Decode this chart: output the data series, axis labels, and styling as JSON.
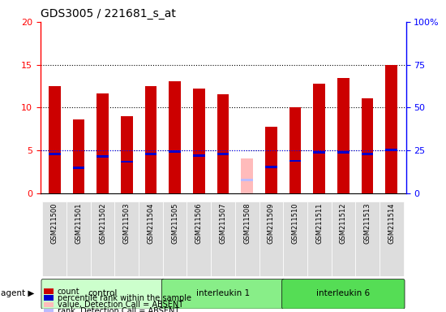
{
  "title": "GDS3005 / 221681_s_at",
  "samples": [
    "GSM211500",
    "GSM211501",
    "GSM211502",
    "GSM211503",
    "GSM211504",
    "GSM211505",
    "GSM211506",
    "GSM211507",
    "GSM211508",
    "GSM211509",
    "GSM211510",
    "GSM211511",
    "GSM211512",
    "GSM211513",
    "GSM211514"
  ],
  "count_values": [
    12.5,
    8.6,
    11.7,
    9.0,
    12.5,
    13.1,
    12.2,
    11.6,
    null,
    7.8,
    10.0,
    12.8,
    13.5,
    11.1,
    15.0
  ],
  "rank_values": [
    4.6,
    3.0,
    4.3,
    3.7,
    4.6,
    4.9,
    4.4,
    4.6,
    null,
    3.1,
    3.8,
    4.8,
    4.8,
    4.6,
    5.1
  ],
  "absent_count": [
    null,
    null,
    null,
    null,
    null,
    null,
    null,
    null,
    4.1,
    null,
    null,
    null,
    null,
    null,
    null
  ],
  "absent_rank": [
    null,
    null,
    null,
    null,
    null,
    null,
    null,
    null,
    1.6,
    null,
    null,
    null,
    null,
    null,
    null
  ],
  "groups": [
    {
      "label": "control",
      "start": 0,
      "end": 4,
      "color": "#aaffaa"
    },
    {
      "label": "interleukin 1",
      "start": 5,
      "end": 9,
      "color": "#77ee77"
    },
    {
      "label": "interleukin 6",
      "start": 10,
      "end": 14,
      "color": "#44dd44"
    }
  ],
  "ylim_left": [
    0,
    20
  ],
  "ylim_right": [
    0,
    100
  ],
  "yticks_left": [
    0,
    5,
    10,
    15,
    20
  ],
  "yticks_right": [
    0,
    25,
    50,
    75,
    100
  ],
  "yticklabels_right": [
    "0",
    "25",
    "50",
    "75",
    "100%"
  ],
  "bar_color": "#cc0000",
  "rank_color": "#0000cc",
  "absent_bar_color": "#ffbbbb",
  "absent_rank_color": "#bbbbff",
  "bar_width": 0.5,
  "bg_color": "#dddddd",
  "grid_color": "black",
  "grid_style": "dotted"
}
